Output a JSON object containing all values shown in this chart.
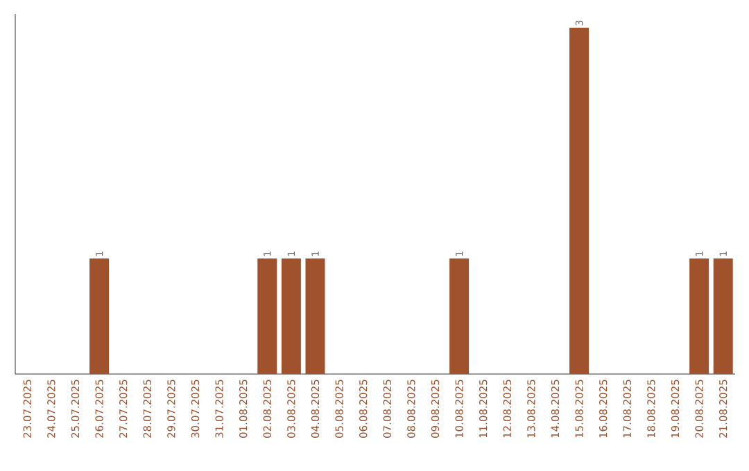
{
  "chart_data": {
    "type": "bar",
    "categories": [
      "23.07.2025",
      "24.07.2025",
      "25.07.2025",
      "26.07.2025",
      "27.07.2025",
      "28.07.2025",
      "29.07.2025",
      "30.07.2025",
      "31.07.2025",
      "01.08.2025",
      "02.08.2025",
      "03.08.2025",
      "04.08.2025",
      "05.08.2025",
      "06.08.2025",
      "07.08.2025",
      "08.08.2025",
      "09.08.2025",
      "10.08.2025",
      "11.08.2025",
      "12.08.2025",
      "13.08.2025",
      "14.08.2025",
      "15.08.2025",
      "16.08.2025",
      "17.08.2025",
      "18.08.2025",
      "19.08.2025",
      "20.08.2025",
      "21.08.2025"
    ],
    "values": [
      0,
      0,
      0,
      1,
      0,
      0,
      0,
      0,
      0,
      0,
      1,
      1,
      1,
      0,
      0,
      0,
      0,
      0,
      1,
      0,
      0,
      0,
      0,
      3,
      0,
      0,
      0,
      0,
      1,
      1
    ],
    "value_labels": [
      null,
      null,
      null,
      "1",
      null,
      null,
      null,
      null,
      null,
      null,
      "1",
      "1",
      "1",
      null,
      null,
      null,
      null,
      null,
      "1",
      null,
      null,
      null,
      null,
      "3",
      null,
      null,
      null,
      null,
      "1",
      "1"
    ],
    "color": "#a0522d"
  }
}
